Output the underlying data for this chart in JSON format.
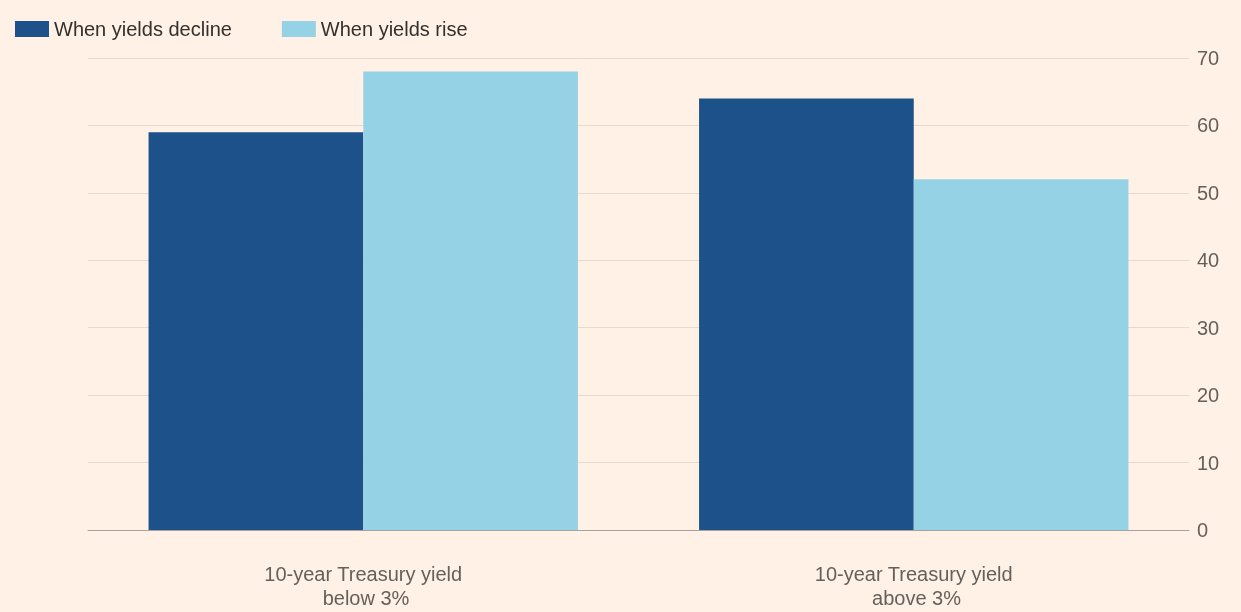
{
  "chart_data": {
    "type": "bar",
    "categories": [
      "10-year Treasury yield below 3%",
      "10-year Treasury yield above 3%"
    ],
    "series": [
      {
        "name": "When yields decline",
        "color": "#1d5189",
        "values": [
          59,
          64
        ]
      },
      {
        "name": "When yields rise",
        "color": "#96d2e6",
        "values": [
          68,
          52
        ]
      }
    ],
    "ylim": [
      0,
      70
    ],
    "yticks": [
      0,
      10,
      20,
      30,
      40,
      50,
      60,
      70
    ],
    "grid": "y",
    "legend": "top left"
  }
}
